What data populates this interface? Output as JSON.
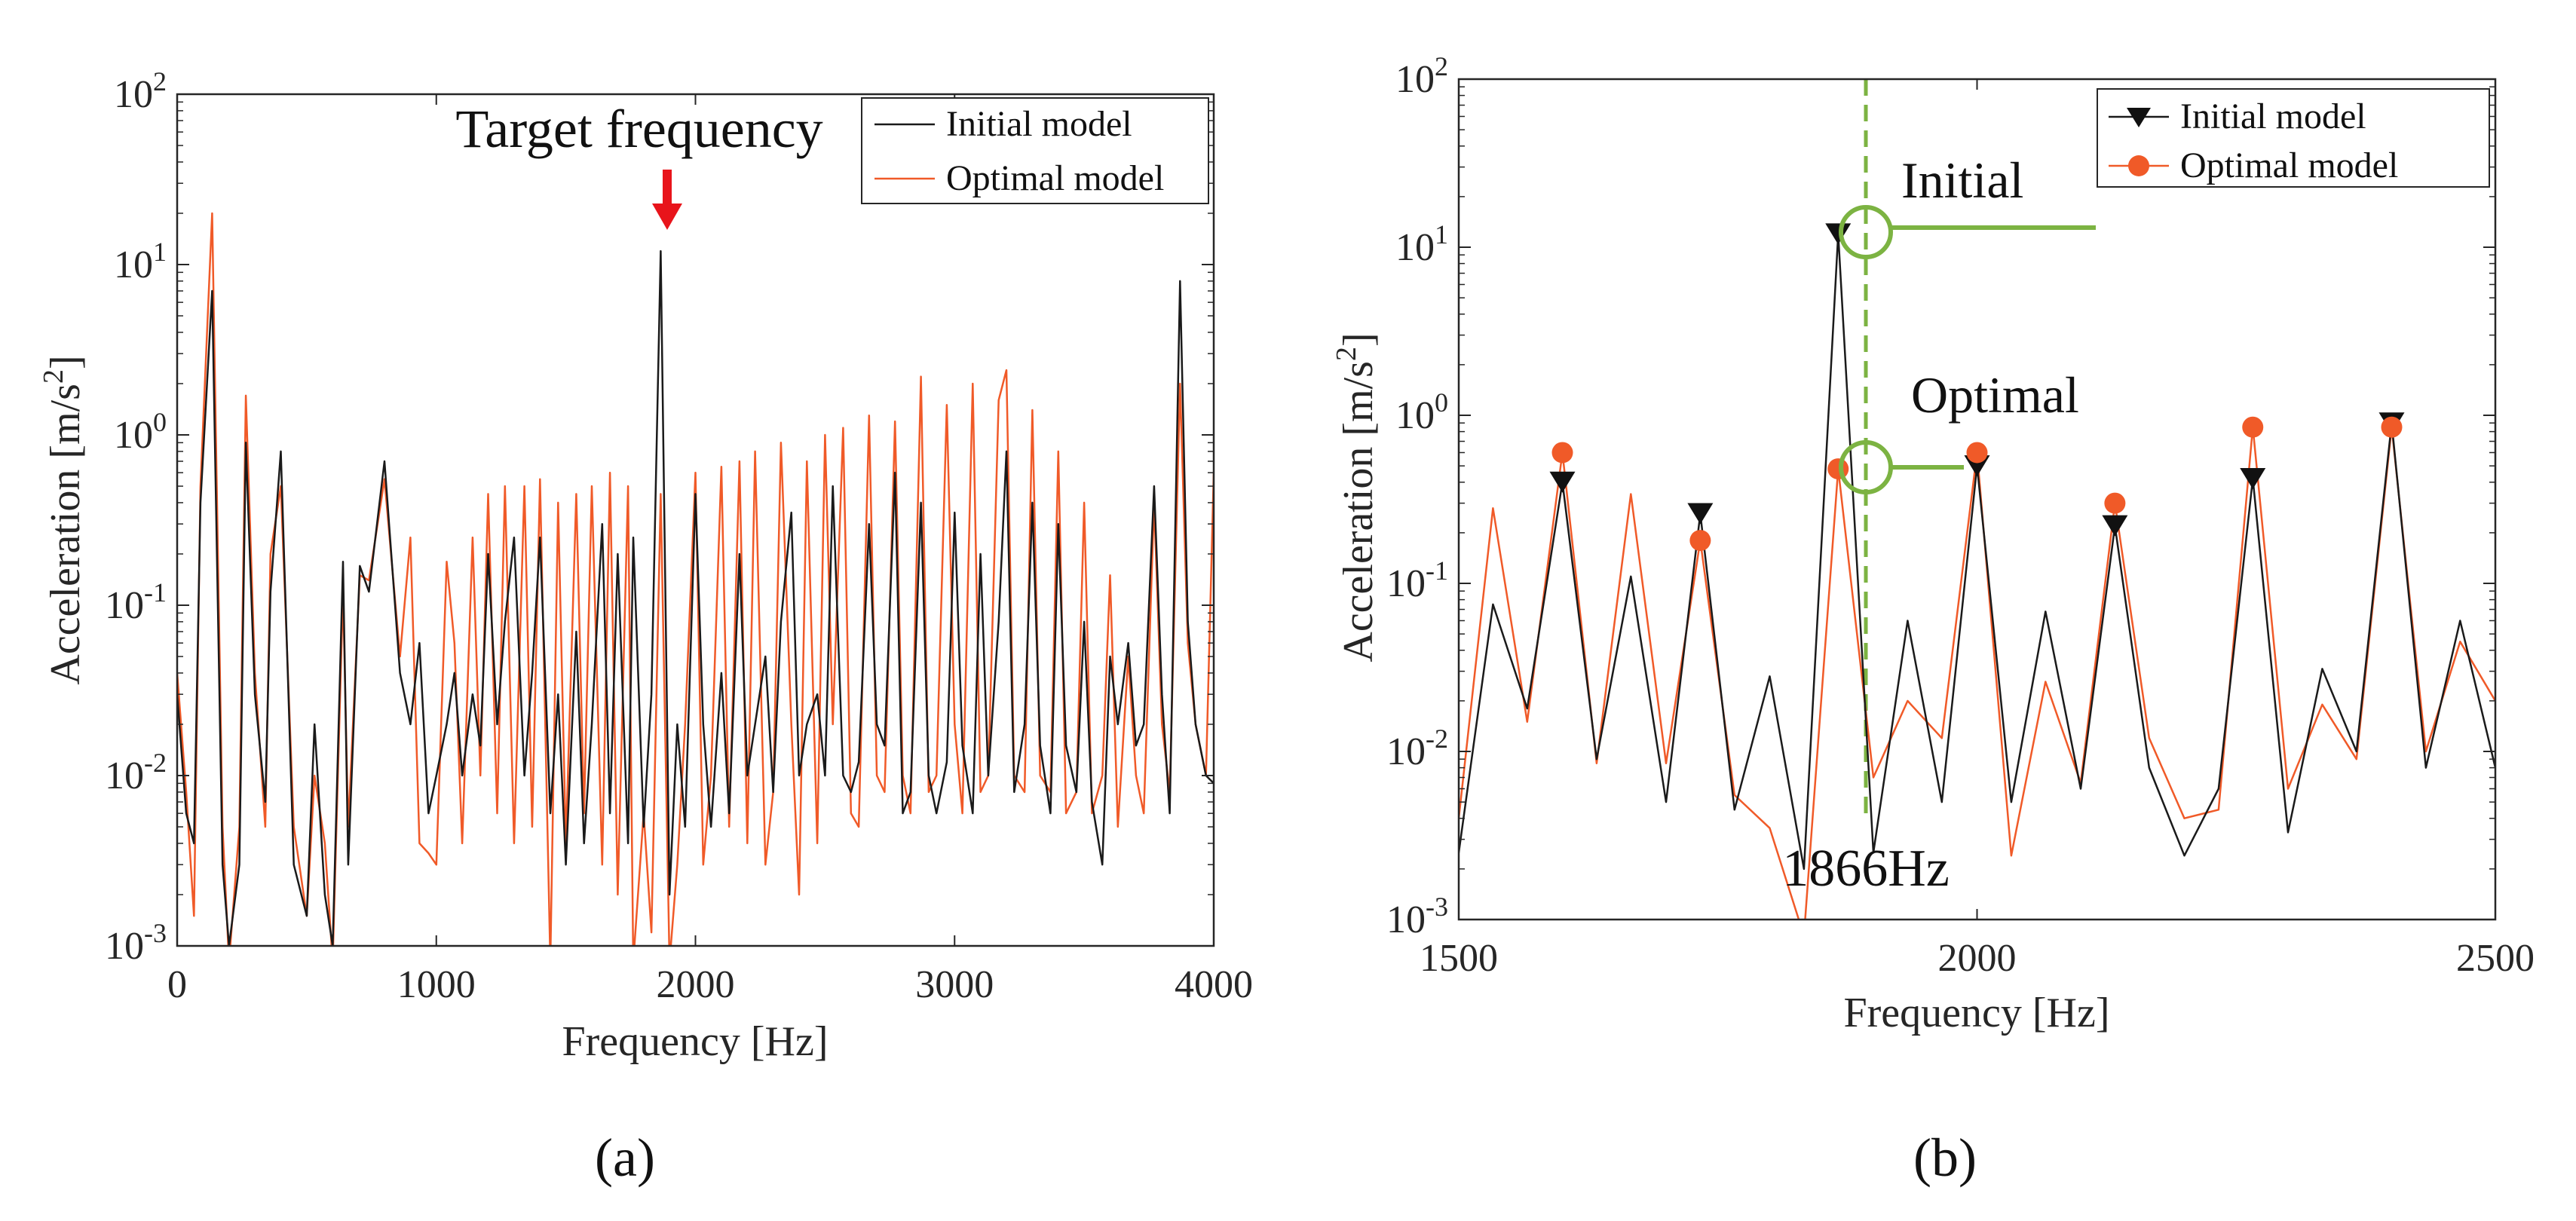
{
  "panel_labels": [
    "(a)",
    "(b)"
  ],
  "colors": {
    "initial": "#1a1a1a",
    "optimal": "#f05a28",
    "annotation_arrow": "#e8141b",
    "highlight": "#7cb342",
    "axis": "#262626"
  },
  "chart_data": [
    {
      "type": "line",
      "panel": "(a)",
      "xlabel": "Frequency [Hz]",
      "ylabel": "Acceleration [m/s²]",
      "ylabel_main": "Acceleration [m/s",
      "ylabel_sup": "2",
      "ylabel_tail": "]",
      "xlim": [
        0,
        4000
      ],
      "ylim": [
        0.001,
        100
      ],
      "yscale": "log",
      "xticks": [
        0,
        1000,
        2000,
        3000,
        4000
      ],
      "xtick_labels": [
        "0",
        "1000",
        "2000",
        "3000",
        "4000"
      ],
      "yticks": [
        0.001,
        0.01,
        0.1,
        1,
        10,
        100
      ],
      "ytick_labels": [
        [
          "10",
          "-3"
        ],
        [
          "10",
          "-2"
        ],
        [
          "10",
          "-1"
        ],
        [
          "10",
          "0"
        ],
        [
          "10",
          "1"
        ],
        [
          "10",
          "2"
        ]
      ],
      "legend": {
        "position": "top-right",
        "entries": [
          "Initial model",
          "Optimal model"
        ]
      },
      "annotations": [
        {
          "text": "Target frequency",
          "x": 1866,
          "y": 12,
          "marker": "down-arrow"
        }
      ],
      "series": [
        {
          "name": "Initial model",
          "x": [
            0,
            35,
            65,
            90,
            135,
            175,
            200,
            240,
            265,
            300,
            340,
            360,
            400,
            450,
            500,
            530,
            570,
            600,
            640,
            660,
            705,
            740,
            800,
            860,
            900,
            935,
            970,
            1000,
            1040,
            1070,
            1100,
            1140,
            1170,
            1200,
            1235,
            1265,
            1300,
            1340,
            1370,
            1400,
            1440,
            1470,
            1500,
            1540,
            1570,
            1600,
            1640,
            1670,
            1700,
            1740,
            1760,
            1800,
            1830,
            1866,
            1900,
            1930,
            1960,
            2000,
            2030,
            2060,
            2100,
            2130,
            2170,
            2200,
            2230,
            2270,
            2300,
            2330,
            2370,
            2400,
            2430,
            2470,
            2500,
            2530,
            2570,
            2600,
            2630,
            2670,
            2700,
            2730,
            2770,
            2800,
            2830,
            2870,
            2900,
            2930,
            2970,
            3000,
            3030,
            3070,
            3100,
            3130,
            3170,
            3200,
            3230,
            3270,
            3300,
            3330,
            3370,
            3400,
            3430,
            3470,
            3500,
            3530,
            3570,
            3600,
            3630,
            3670,
            3700,
            3730,
            3770,
            3800,
            3830,
            3870,
            3900,
            3930,
            3970,
            4000
          ],
          "y": [
            0.03,
            0.006,
            0.004,
            0.4,
            7,
            0.003,
            0.001,
            0.003,
            0.9,
            0.03,
            0.007,
            0.12,
            0.8,
            0.003,
            0.0015,
            0.02,
            0.002,
            0.001,
            0.18,
            0.003,
            0.17,
            0.12,
            0.7,
            0.04,
            0.02,
            0.06,
            0.006,
            0.01,
            0.02,
            0.04,
            0.01,
            0.03,
            0.015,
            0.2,
            0.02,
            0.08,
            0.25,
            0.01,
            0.04,
            0.25,
            0.006,
            0.03,
            0.003,
            0.07,
            0.004,
            0.02,
            0.3,
            0.006,
            0.2,
            0.004,
            0.25,
            0.005,
            0.03,
            12,
            0.002,
            0.02,
            0.005,
            0.45,
            0.02,
            0.005,
            0.04,
            0.006,
            0.2,
            0.01,
            0.02,
            0.05,
            0.008,
            0.08,
            0.35,
            0.01,
            0.02,
            0.03,
            0.01,
            0.5,
            0.01,
            0.008,
            0.012,
            0.3,
            0.02,
            0.015,
            0.6,
            0.006,
            0.008,
            0.4,
            0.01,
            0.006,
            0.012,
            0.35,
            0.015,
            0.006,
            0.2,
            0.01,
            0.08,
            0.8,
            0.008,
            0.02,
            0.4,
            0.015,
            0.006,
            0.3,
            0.015,
            0.008,
            0.08,
            0.007,
            0.003,
            0.05,
            0.02,
            0.06,
            0.015,
            0.02,
            0.5,
            0.03,
            0.006,
            8,
            0.08,
            0.02,
            0.01,
            0.009
          ]
        },
        {
          "name": "Optimal model",
          "x": [
            0,
            35,
            65,
            90,
            135,
            175,
            200,
            240,
            265,
            300,
            340,
            360,
            400,
            450,
            500,
            530,
            570,
            600,
            640,
            660,
            705,
            740,
            800,
            860,
            900,
            935,
            970,
            1000,
            1040,
            1070,
            1100,
            1140,
            1170,
            1200,
            1235,
            1265,
            1300,
            1340,
            1370,
            1400,
            1440,
            1470,
            1500,
            1540,
            1570,
            1600,
            1640,
            1670,
            1700,
            1740,
            1760,
            1800,
            1830,
            1866,
            1900,
            1930,
            1960,
            2000,
            2030,
            2060,
            2100,
            2130,
            2170,
            2200,
            2230,
            2270,
            2300,
            2330,
            2370,
            2400,
            2430,
            2470,
            2500,
            2530,
            2570,
            2600,
            2630,
            2670,
            2700,
            2730,
            2770,
            2800,
            2830,
            2870,
            2900,
            2930,
            2970,
            3000,
            3030,
            3070,
            3100,
            3130,
            3170,
            3200,
            3230,
            3270,
            3300,
            3330,
            3370,
            3400,
            3430,
            3470,
            3500,
            3530,
            3570,
            3600,
            3630,
            3670,
            3700,
            3730,
            3770,
            3800,
            3830,
            3870,
            3900,
            3930,
            3970,
            4000
          ],
          "y": [
            0.04,
            0.008,
            0.0015,
            0.5,
            20,
            0.005,
            0.0008,
            0.005,
            1.7,
            0.04,
            0.005,
            0.2,
            0.5,
            0.005,
            0.0015,
            0.01,
            0.004,
            0.0008,
            0.12,
            0.005,
            0.15,
            0.14,
            0.55,
            0.05,
            0.25,
            0.004,
            0.0035,
            0.003,
            0.18,
            0.06,
            0.004,
            0.25,
            0.01,
            0.45,
            0.006,
            0.5,
            0.004,
            0.5,
            0.005,
            0.55,
            0.0008,
            0.4,
            0.004,
            0.45,
            0.006,
            0.5,
            0.003,
            0.6,
            0.002,
            0.5,
            0.0008,
            0.006,
            0.0012,
            0.45,
            0.0008,
            0.003,
            0.02,
            0.6,
            0.003,
            0.01,
            0.65,
            0.005,
            0.7,
            0.004,
            0.8,
            0.003,
            0.008,
            0.9,
            0.02,
            0.002,
            0.7,
            0.004,
            1.0,
            0.02,
            1.1,
            0.006,
            0.005,
            1.3,
            0.01,
            0.008,
            1.2,
            0.01,
            0.006,
            2.2,
            0.008,
            0.01,
            1.5,
            0.02,
            0.006,
            2.0,
            0.008,
            0.01,
            1.6,
            2.4,
            0.01,
            0.008,
            1.4,
            0.01,
            0.008,
            0.8,
            0.006,
            0.008,
            0.4,
            0.006,
            0.01,
            0.15,
            0.005,
            0.05,
            0.01,
            0.006,
            0.4,
            0.02,
            0.008,
            2.0,
            0.06,
            0.02,
            0.01,
            0.6
          ]
        }
      ]
    },
    {
      "type": "line",
      "panel": "(b)",
      "xlabel": "Frequency [Hz]",
      "ylabel": "Acceleration [m/s²]",
      "ylabel_main": "Acceleration [m/s",
      "ylabel_sup": "2",
      "ylabel_tail": "]",
      "xlim": [
        1500,
        2500
      ],
      "ylim": [
        0.001,
        100
      ],
      "yscale": "log",
      "xticks": [
        1500,
        2000,
        2500
      ],
      "xtick_labels": [
        "1500",
        "2000",
        "2500"
      ],
      "yticks": [
        0.001,
        0.01,
        0.1,
        1,
        10,
        100
      ],
      "ytick_labels": [
        [
          "10",
          "-3"
        ],
        [
          "10",
          "-2"
        ],
        [
          "10",
          "-1"
        ],
        [
          "10",
          "0"
        ],
        [
          "10",
          "1"
        ],
        [
          "10",
          "2"
        ]
      ],
      "legend": {
        "position": "top-right",
        "entries": [
          "Initial model",
          "Optimal model"
        ]
      },
      "vline": {
        "x": 1866,
        "label": "1866Hz",
        "style": "dashed"
      },
      "annotations": [
        {
          "text": "Initial",
          "x": 1866,
          "y": 12
        },
        {
          "text": "Optimal",
          "x": 1866,
          "y": 0.48
        }
      ],
      "series": [
        {
          "name": "Initial model",
          "marker": "triangle-down",
          "x": [
            1500,
            1533,
            1566,
            1600,
            1633,
            1666,
            1700,
            1733,
            1766,
            1800,
            1833,
            1866,
            1900,
            1933,
            1966,
            2000,
            2033,
            2066,
            2100,
            2133,
            2166,
            2200,
            2233,
            2266,
            2300,
            2333,
            2366,
            2400,
            2433,
            2466,
            2500
          ],
          "y": [
            0.0025,
            0.075,
            0.018,
            0.4,
            0.009,
            0.11,
            0.005,
            0.26,
            0.0045,
            0.028,
            0.002,
            12,
            0.0025,
            0.06,
            0.005,
            0.5,
            0.005,
            0.068,
            0.006,
            0.22,
            0.008,
            0.0024,
            0.006,
            0.42,
            0.0033,
            0.031,
            0.01,
            0.9,
            0.008,
            0.06,
            0.008
          ],
          "marker_points": {
            "x": [
              1600,
              1733,
              1866,
              2000,
              2133,
              2266,
              2400
            ],
            "y": [
              0.4,
              0.26,
              12,
              0.5,
              0.22,
              0.42,
              0.9
            ]
          }
        },
        {
          "name": "Optimal model",
          "marker": "circle",
          "x": [
            1500,
            1533,
            1566,
            1600,
            1633,
            1666,
            1700,
            1733,
            1766,
            1800,
            1833,
            1866,
            1900,
            1933,
            1966,
            2000,
            2033,
            2066,
            2100,
            2133,
            2166,
            2200,
            2233,
            2266,
            2300,
            2333,
            2366,
            2400,
            2433,
            2466,
            2500
          ],
          "y": [
            0.004,
            0.28,
            0.015,
            0.6,
            0.0085,
            0.34,
            0.0085,
            0.18,
            0.0055,
            0.0035,
            0.0008,
            0.48,
            0.007,
            0.02,
            0.012,
            0.6,
            0.0024,
            0.026,
            0.0065,
            0.3,
            0.012,
            0.004,
            0.0045,
            0.85,
            0.006,
            0.019,
            0.009,
            0.85,
            0.01,
            0.045,
            0.02
          ],
          "marker_points": {
            "x": [
              1600,
              1733,
              1866,
              2000,
              2133,
              2266,
              2400
            ],
            "y": [
              0.6,
              0.18,
              0.48,
              0.6,
              0.3,
              0.85,
              0.85
            ]
          }
        }
      ]
    }
  ]
}
